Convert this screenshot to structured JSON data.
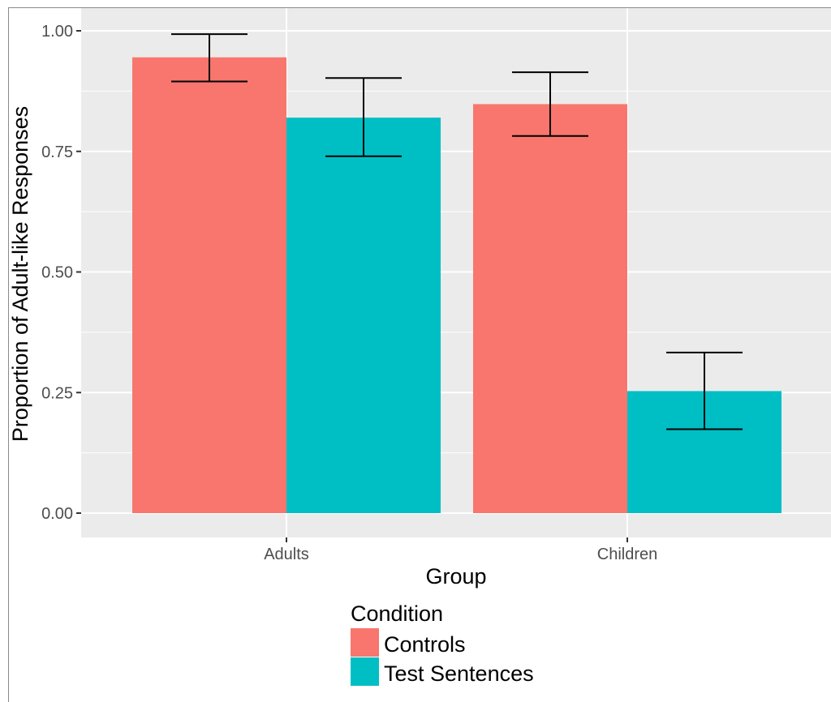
{
  "chart_data": {
    "type": "bar",
    "categories": [
      "Adults",
      "Children"
    ],
    "series": [
      {
        "name": "Controls",
        "color": "#F8766D",
        "values": [
          0.945,
          0.848
        ],
        "error_low": [
          0.895,
          0.782
        ],
        "error_high": [
          0.993,
          0.914
        ]
      },
      {
        "name": "Test Sentences",
        "color": "#00BFC4",
        "values": [
          0.82,
          0.253
        ],
        "error_low": [
          0.74,
          0.174
        ],
        "error_high": [
          0.902,
          0.333
        ]
      }
    ],
    "xlabel": "Group",
    "ylabel": "Proportion of Adult-like Responses",
    "ylim": [
      -0.05,
      1.05
    ],
    "yticks": [
      0.0,
      0.25,
      0.5,
      0.75,
      1.0
    ],
    "ytick_labels": [
      "0.00",
      "0.25",
      "0.50",
      "0.75",
      "1.00"
    ],
    "grid": true,
    "panel_background": "#EBEBEB",
    "legend": {
      "title": "Condition",
      "placement": "bottom"
    }
  }
}
